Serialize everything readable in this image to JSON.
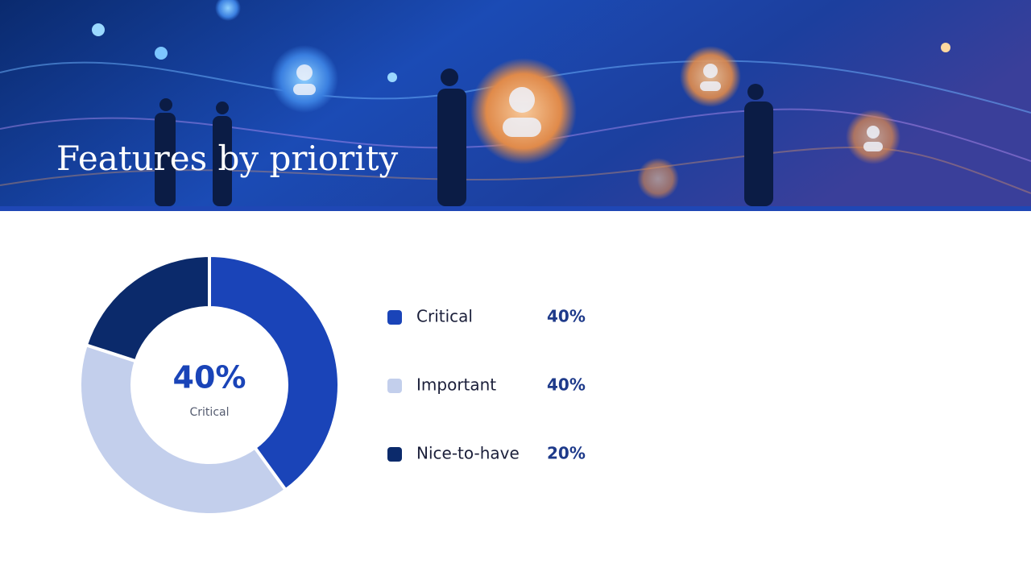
{
  "chart_data": {
    "type": "pie",
    "title": "Features by priority",
    "categories": [
      "Critical",
      "Important",
      "Nice-to-have"
    ],
    "values": [
      40,
      40,
      20
    ],
    "value_labels": [
      "40%",
      "40%",
      "20%"
    ],
    "colors": [
      "#1a44b8",
      "#c3cfec",
      "#0b2a6b"
    ]
  }
}
